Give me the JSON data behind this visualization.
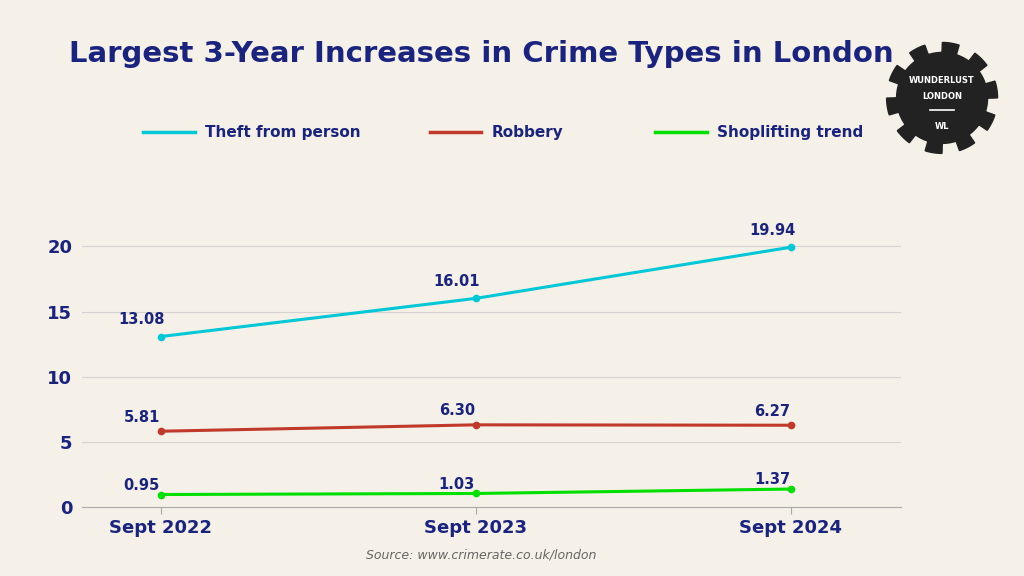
{
  "title": "Largest 3-Year Increases in Crime Types in London",
  "background_color": "#f5f0e8",
  "x_labels": [
    "Sept 2022",
    "Sept 2023",
    "Sept 2024"
  ],
  "x_values": [
    0,
    1,
    2
  ],
  "series": [
    {
      "name": "Theft from person",
      "values": [
        13.08,
        16.01,
        19.94
      ],
      "color": "#00c8d7",
      "linewidth": 2.2
    },
    {
      "name": "Robbery",
      "values": [
        5.81,
        6.3,
        6.27
      ],
      "color": "#c0392b",
      "linewidth": 2.2
    },
    {
      "name": "Shoplifting trend",
      "values": [
        0.95,
        1.03,
        1.37
      ],
      "color": "#00e000",
      "linewidth": 2.2
    }
  ],
  "ylim": [
    0,
    23
  ],
  "yticks": [
    0,
    5,
    10,
    15,
    20
  ],
  "source_text": "Source: www.crimerate.co.uk/london",
  "title_color": "#1a237e",
  "label_color": "#1a237e",
  "axis_label_color": "#1a237e",
  "title_fontsize": 21,
  "data_label_fontsize": 10.5,
  "legend_fontsize": 11,
  "axis_tick_fontsize": 13,
  "source_fontsize": 9,
  "grid_color": "#cccccc",
  "label_offsets": [
    [
      [
        -0.06,
        0.7
      ],
      [
        -0.06,
        0.7
      ],
      [
        -0.06,
        0.7
      ]
    ],
    [
      [
        -0.06,
        0.5
      ],
      [
        -0.06,
        0.5
      ],
      [
        -0.06,
        0.5
      ]
    ],
    [
      [
        -0.06,
        0.12
      ],
      [
        -0.06,
        0.12
      ],
      [
        -0.06,
        0.12
      ]
    ]
  ]
}
